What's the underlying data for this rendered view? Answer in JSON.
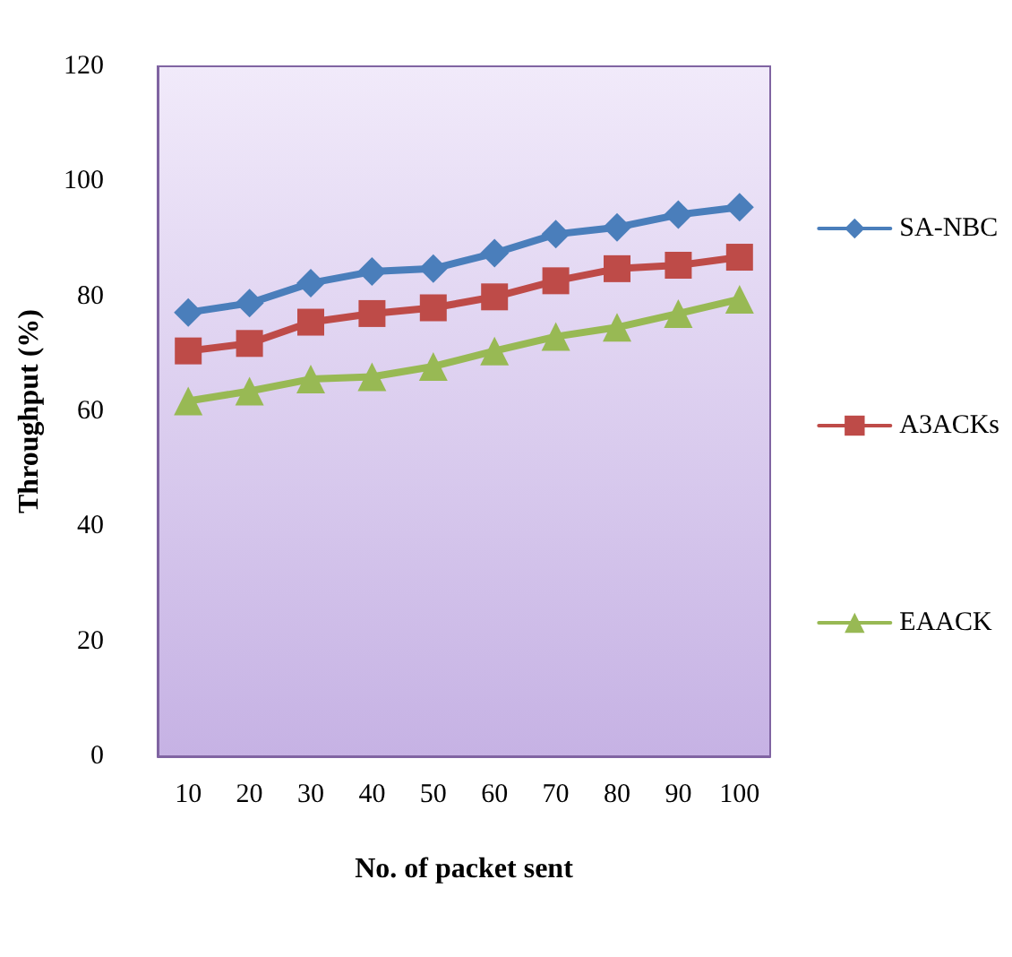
{
  "chart_data": {
    "type": "line",
    "xlabel": "No. of packet sent",
    "ylabel": "Throughput (%)",
    "categories": [
      "10",
      "20",
      "30",
      "40",
      "50",
      "60",
      "70",
      "80",
      "90",
      "100"
    ],
    "series": [
      {
        "name": "SA-NBC",
        "color": "#4a7ebb",
        "marker": "diamond",
        "values": [
          77.2,
          78.8,
          82.3,
          84.3,
          84.8,
          87.5,
          90.8,
          92,
          94.2,
          95.5
        ]
      },
      {
        "name": "A3ACKs",
        "color": "#be4b48",
        "marker": "square",
        "values": [
          70.5,
          71.8,
          75.5,
          77,
          78,
          79.9,
          82.7,
          84.8,
          85.4,
          86.8
        ]
      },
      {
        "name": "EAACK",
        "color": "#98b954",
        "marker": "triangle",
        "values": [
          61.8,
          63.5,
          65.6,
          66,
          67.8,
          70.5,
          73,
          74.6,
          77,
          79.5
        ]
      }
    ],
    "ylim": [
      0,
      120
    ],
    "yticks": [
      0,
      20,
      40,
      60,
      80,
      100,
      120
    ],
    "grid": false,
    "legend": "right"
  }
}
